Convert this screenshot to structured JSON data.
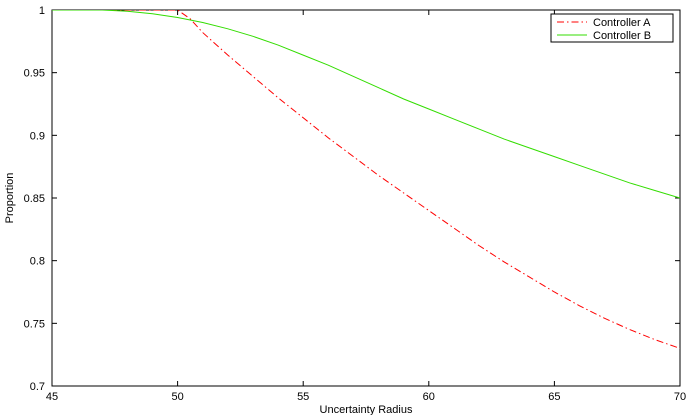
{
  "chart_data": {
    "type": "line",
    "title": "",
    "xlabel": "Uncertainty Radius",
    "ylabel": "Proportion",
    "xlim": [
      45,
      70
    ],
    "ylim": [
      0.7,
      1
    ],
    "x_ticks": [
      45,
      50,
      55,
      60,
      65,
      70
    ],
    "y_ticks": [
      0.7,
      0.75,
      0.8,
      0.85,
      0.9,
      0.95,
      1
    ],
    "x_tick_labels": [
      "45",
      "50",
      "55",
      "60",
      "65",
      "70"
    ],
    "y_tick_labels": [
      "0.7",
      "0.75",
      "0.8",
      "0.85",
      "0.9",
      "0.95",
      "1"
    ],
    "grid": false,
    "legend_position": "top-right",
    "series": [
      {
        "name": "Controller A",
        "color": "#ff0000",
        "line_style": "dash-dot",
        "x": [
          45,
          47,
          49,
          50,
          50.5,
          51,
          52,
          53,
          54,
          55,
          56,
          57,
          58,
          59,
          60,
          61,
          62,
          63,
          64,
          65,
          66,
          67,
          68,
          69,
          70
        ],
        "y": [
          1.0,
          1.0,
          1.0,
          1.0,
          0.993,
          0.982,
          0.964,
          0.947,
          0.93,
          0.914,
          0.898,
          0.883,
          0.868,
          0.854,
          0.84,
          0.826,
          0.812,
          0.799,
          0.787,
          0.775,
          0.764,
          0.754,
          0.745,
          0.737,
          0.73
        ]
      },
      {
        "name": "Controller B",
        "color": "#33dd00",
        "line_style": "solid",
        "x": [
          45,
          46,
          47,
          48,
          49,
          50,
          51,
          52,
          53,
          54,
          55,
          56,
          57,
          58,
          59,
          60,
          61,
          62,
          63,
          64,
          65,
          66,
          67,
          68,
          69,
          70
        ],
        "y": [
          1.0,
          1.0,
          1.0,
          0.999,
          0.997,
          0.994,
          0.99,
          0.985,
          0.979,
          0.972,
          0.964,
          0.956,
          0.947,
          0.938,
          0.929,
          0.921,
          0.913,
          0.905,
          0.897,
          0.89,
          0.883,
          0.876,
          0.869,
          0.862,
          0.856,
          0.85
        ]
      }
    ]
  }
}
